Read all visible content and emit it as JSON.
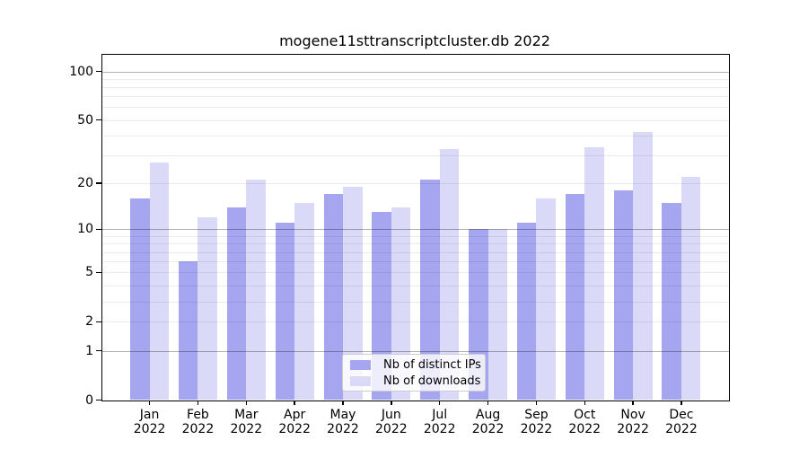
{
  "title": "mogene11sttranscriptcluster.db 2022",
  "colors": {
    "distinct_ips": "#a5a5f0",
    "downloads": "#dadaf8",
    "grid_major_hex": "#b3b3b3",
    "grid_minor_hex": "#ebebeb",
    "axis": "#000000"
  },
  "legend": {
    "items": [
      {
        "label": "Nb of distinct IPs",
        "color": "#a5a5f0"
      },
      {
        "label": "Nb of downloads",
        "color": "#dadaf8"
      }
    ]
  },
  "y_axis": {
    "tick_labels": [
      "100",
      "50",
      "20",
      "10",
      "5",
      "2",
      "1",
      "0"
    ],
    "tick_values": [
      100,
      50,
      20,
      10,
      5,
      2,
      1,
      0
    ]
  },
  "x_axis": {
    "year": "2022",
    "months": [
      "Jan",
      "Feb",
      "Mar",
      "Apr",
      "May",
      "Jun",
      "Jul",
      "Aug",
      "Sep",
      "Oct",
      "Nov",
      "Dec"
    ]
  },
  "chart_data": {
    "type": "bar",
    "title": "mogene11sttranscriptcluster.db 2022",
    "categories": [
      "Jan 2022",
      "Feb 2022",
      "Mar 2022",
      "Apr 2022",
      "May 2022",
      "Jun 2022",
      "Jul 2022",
      "Aug 2022",
      "Sep 2022",
      "Oct 2022",
      "Nov 2022",
      "Dec 2022"
    ],
    "series": [
      {
        "name": "Nb of distinct IPs",
        "color": "#a5a5f0",
        "values": [
          16,
          6,
          14,
          11,
          17,
          13,
          21,
          10,
          11,
          17,
          18,
          15
        ]
      },
      {
        "name": "Nb of downloads",
        "color": "#dadaf8",
        "values": [
          27,
          12,
          21,
          15,
          19,
          14,
          33,
          10,
          16,
          34,
          42,
          22
        ]
      }
    ],
    "y_scale": "log10(1+y)",
    "ylim": [
      0,
      126
    ],
    "y_ticks": [
      0,
      1,
      2,
      5,
      10,
      20,
      50,
      100
    ],
    "grid": {
      "major_at": [
        1,
        10,
        100
      ],
      "minor_at": [
        2,
        3,
        4,
        5,
        6,
        7,
        8,
        9,
        20,
        30,
        40,
        50,
        60,
        70,
        80,
        90
      ]
    },
    "legend_position": "lower center",
    "grid_on": true
  }
}
